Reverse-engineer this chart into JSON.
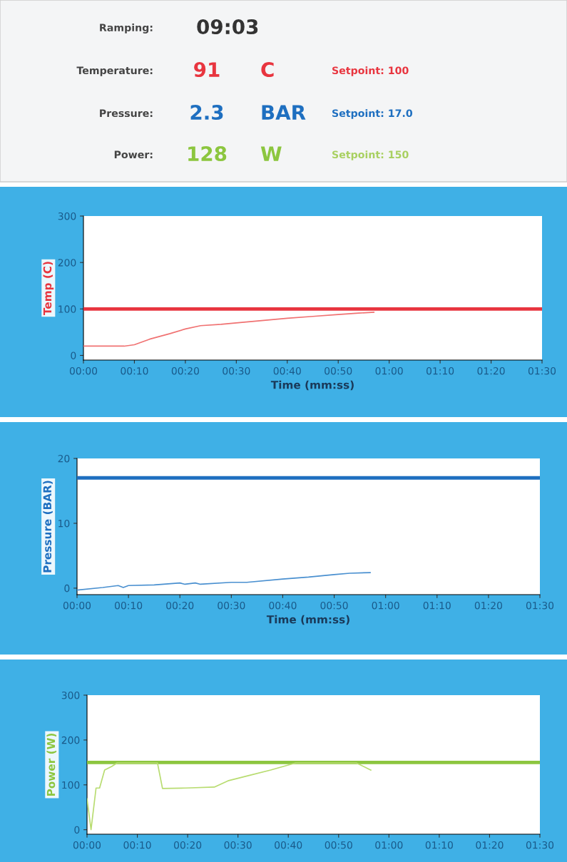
{
  "chart_data": [
    {
      "type": "other",
      "annotations": [
        "Ramping:",
        "09:03",
        "Temperature:",
        "91",
        "C",
        "Setpoint: 100",
        "Pressure:",
        "2.3",
        "BAR",
        "Setpoint: 17.0",
        "Power:",
        "128",
        "W",
        "Setpoint: 150"
      ],
      "colors": [
        "#444444",
        "#333333",
        "#444444",
        "#e8353f",
        "#e8353f",
        "#e8353f",
        "#444444",
        "#1e6fc0",
        "#1e6fc0",
        "#1e6fc0",
        "#444444",
        "#8cc63f",
        "#8cc63f",
        "#a8d060"
      ]
    },
    {
      "type": "line",
      "xlabel": "Time (mm:ss)",
      "ylabel": "Temp (C)",
      "xlim": [
        0,
        90
      ],
      "ylim": [
        -10,
        300
      ],
      "yticks": [
        0,
        100,
        200,
        300
      ],
      "xticks": [
        {
          "value": 0,
          "label": "00:00"
        },
        {
          "value": 10,
          "label": "00:10"
        },
        {
          "value": 20,
          "label": "00:20"
        },
        {
          "value": 30,
          "label": "00:30"
        },
        {
          "value": 40,
          "label": "00:40"
        },
        {
          "value": 50,
          "label": "00:50"
        },
        {
          "value": 60,
          "label": "01:00"
        },
        {
          "value": 70,
          "label": "01:10"
        },
        {
          "value": 80,
          "label": "01:20"
        },
        {
          "value": 90,
          "label": "01:30"
        }
      ],
      "series": [
        {
          "color": "#f07272",
          "x": [
            0,
            8,
            10,
            13,
            17,
            20,
            23,
            27,
            30,
            35,
            40,
            45,
            50,
            54,
            57
          ],
          "values": [
            20,
            20,
            23,
            35,
            47,
            57,
            64,
            67,
            70,
            75,
            80,
            84,
            88,
            91,
            93
          ]
        }
      ],
      "ref_lines": [
        {
          "axis": "y",
          "value": 100,
          "color": "#e8353f"
        }
      ],
      "grid": false
    },
    {
      "type": "line",
      "xlabel": "Time (mm:ss)",
      "ylabel": "Pressure (BAR)",
      "xlim": [
        0,
        90
      ],
      "ylim": [
        -1,
        20
      ],
      "yticks": [
        0,
        10,
        20
      ],
      "xticks": [
        {
          "value": 0,
          "label": "00:00"
        },
        {
          "value": 10,
          "label": "00:10"
        },
        {
          "value": 20,
          "label": "00:20"
        },
        {
          "value": 30,
          "label": "00:30"
        },
        {
          "value": 40,
          "label": "00:40"
        },
        {
          "value": 50,
          "label": "00:50"
        },
        {
          "value": 60,
          "label": "01:00"
        },
        {
          "value": 70,
          "label": "01:10"
        },
        {
          "value": 80,
          "label": "01:20"
        },
        {
          "value": 90,
          "label": "01:30"
        }
      ],
      "series": [
        {
          "color": "#4a90d0",
          "x": [
            0,
            5,
            8,
            9,
            10,
            15,
            20,
            21,
            23,
            24,
            30,
            33,
            40,
            45,
            50,
            53,
            57
          ],
          "values": [
            -0.3,
            0.1,
            0.4,
            0.1,
            0.4,
            0.5,
            0.8,
            0.6,
            0.8,
            0.6,
            0.9,
            0.9,
            1.4,
            1.7,
            2.1,
            2.3,
            2.4
          ]
        }
      ],
      "ref_lines": [
        {
          "axis": "y",
          "value": 17,
          "color": "#1e6fc0"
        }
      ],
      "grid": false
    },
    {
      "type": "line",
      "ylabel": "Power (W)",
      "xlim": [
        0,
        90
      ],
      "ylim": [
        -10,
        300
      ],
      "yticks": [
        0,
        100,
        200,
        300
      ],
      "xticks": [
        {
          "value": 0,
          "label": "00:00"
        },
        {
          "value": 10,
          "label": "00:10"
        },
        {
          "value": 20,
          "label": "00:20"
        },
        {
          "value": 30,
          "label": "00:30"
        },
        {
          "value": 40,
          "label": "00:40"
        },
        {
          "value": 50,
          "label": "00:50"
        },
        {
          "value": 60,
          "label": "01:00"
        },
        {
          "value": 70,
          "label": "01:10"
        },
        {
          "value": 80,
          "label": "01:20"
        },
        {
          "value": 90,
          "label": "01:30"
        }
      ],
      "series": [
        {
          "color": "#b8dc70",
          "x": [
            0,
            0.8,
            1.8,
            2.5,
            3.5,
            4.9,
            6,
            14,
            15,
            19.6,
            25.3,
            28,
            32.2,
            36.5,
            41.5,
            53.5,
            56.4
          ],
          "values": [
            69,
            0,
            93,
            93,
            133,
            141,
            149,
            149,
            92,
            93,
            95,
            109,
            121,
            133,
            149,
            149,
            133
          ]
        }
      ],
      "ref_lines": [
        {
          "axis": "y",
          "value": 150,
          "color": "#8cc63f"
        }
      ],
      "grid": false
    }
  ]
}
